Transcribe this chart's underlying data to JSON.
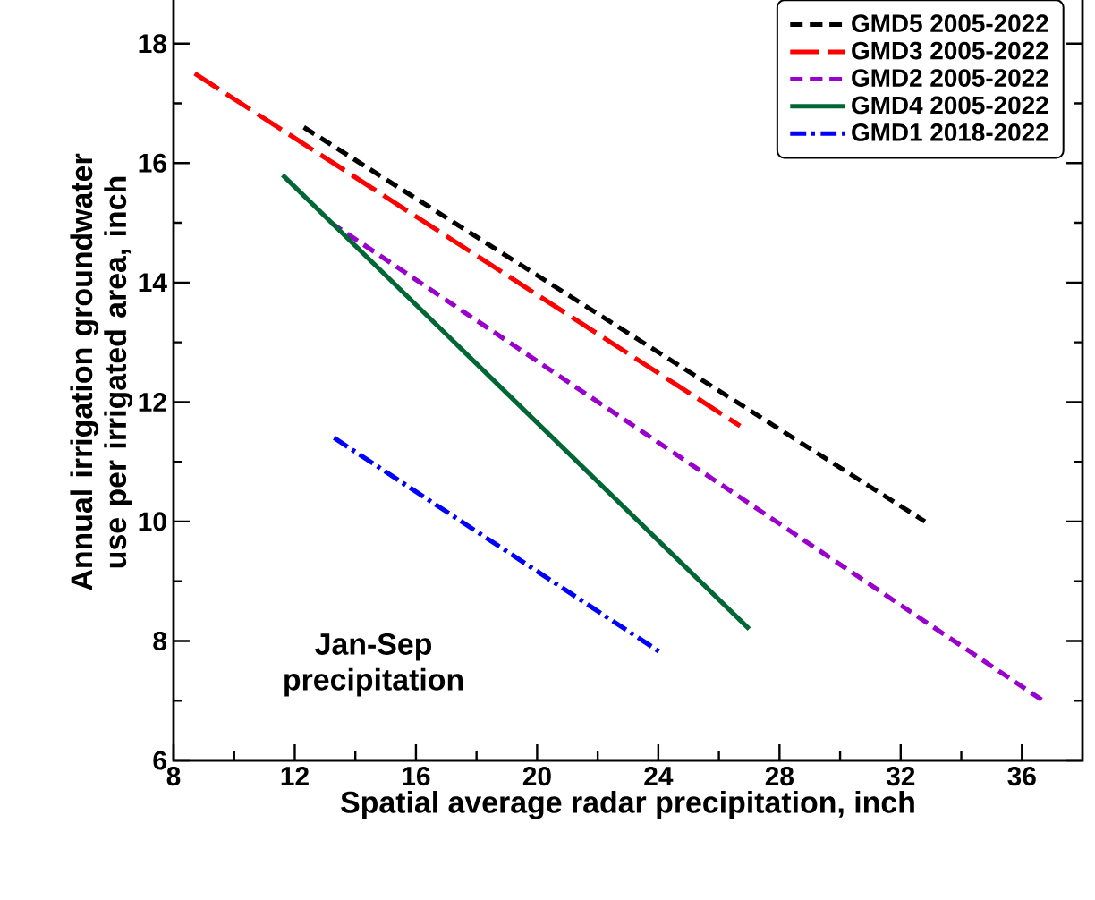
{
  "chart_data": {
    "type": "line",
    "xlabel": "Spatial average radar precipitation, inch",
    "ylabel": "Annual irrigation groundwater use per irrigated area, inch",
    "xlim": [
      8,
      38
    ],
    "ylim": [
      6,
      19
    ],
    "xticks": [
      8,
      12,
      16,
      20,
      24,
      28,
      32,
      36
    ],
    "yticks": [
      6,
      8,
      10,
      12,
      14,
      16,
      18
    ],
    "legend": "top right",
    "grid": false,
    "marker": "none",
    "annotations": [
      "Jan-Sep precipitation"
    ],
    "series": [
      {
        "name": "GMD5 2005-2022",
        "color": "#000000",
        "line_style": "dashed",
        "x": [
          12.3,
          32.8
        ],
        "values": [
          16.6,
          10.0
        ]
      },
      {
        "name": "GMD3 2005-2022",
        "color": "#ff0000",
        "line_style": "long dashed",
        "x": [
          8.7,
          26.7
        ],
        "values": [
          17.5,
          11.6
        ]
      },
      {
        "name": "GMD2 2005-2022",
        "color": "#9900cc",
        "line_style": "dashed",
        "x": [
          13.2,
          36.7
        ],
        "values": [
          15.0,
          7.0
        ]
      },
      {
        "name": "GMD4 2005-2022",
        "color": "#006633",
        "line_style": "solid",
        "x": [
          11.6,
          27.0
        ],
        "values": [
          15.8,
          8.2
        ]
      },
      {
        "name": "GMD1 2018-2022",
        "color": "#0000ff",
        "line_style": "dashdot",
        "x": [
          13.3,
          24.1
        ],
        "values": [
          11.4,
          7.8
        ]
      }
    ]
  }
}
